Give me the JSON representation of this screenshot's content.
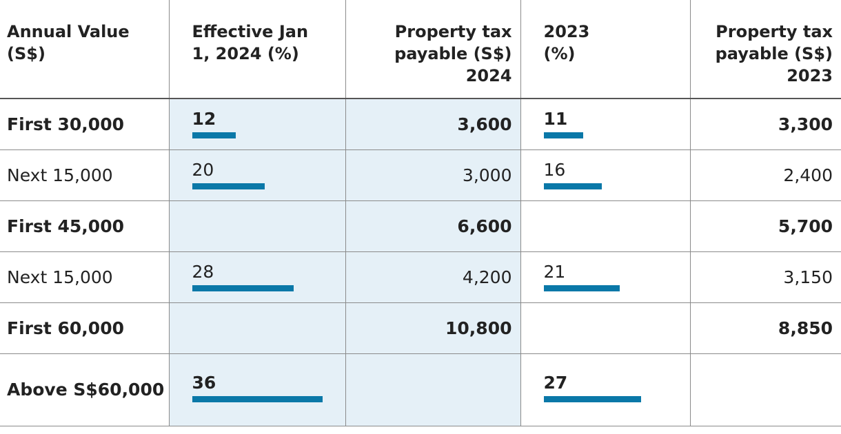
{
  "table": {
    "headers": [
      "Annual Value (S$)",
      "Effective Jan 1, 2024 (%)",
      "Property tax payable (S$) 2024",
      "2023 (%)",
      "Property tax payable (S$) 2023"
    ],
    "rows": [
      [
        "First 30,000",
        12,
        "3,600",
        11,
        "3,300"
      ],
      [
        "Next 15,000",
        20,
        "3,000",
        16,
        "2,400"
      ],
      [
        "First 45,000",
        null,
        "6,600",
        null,
        "5,700"
      ],
      [
        "Next 15,000",
        28,
        "4,200",
        21,
        "3,150"
      ],
      [
        "First 60,000",
        null,
        "10,800",
        null,
        "8,850"
      ],
      [
        "Above S$60,000",
        36,
        null,
        27,
        null
      ]
    ]
  }
}
